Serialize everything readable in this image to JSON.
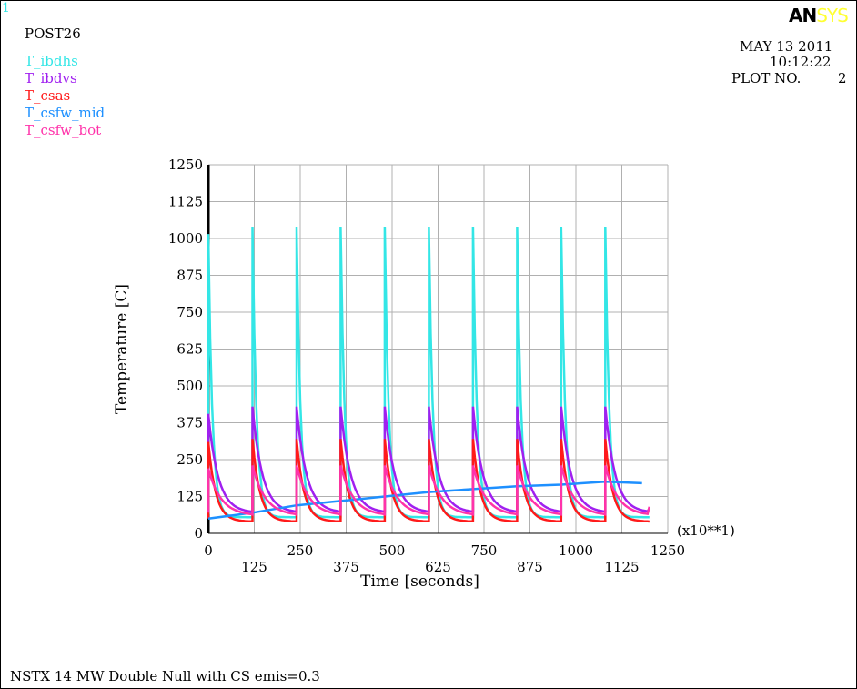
{
  "window_number": "1",
  "post_label": "POST26",
  "logo": {
    "part1": "AN",
    "part2": "SYS",
    "part1_color": "#000000",
    "part2_color": "#ffff33"
  },
  "date": "MAY 13 2011",
  "time": "10:12:22",
  "plot_no_label": "PLOT NO.",
  "plot_no": "2",
  "footer_caption": "NSTX 14 MW Double Null with CS emis=0.3",
  "chart_data": {
    "type": "line",
    "title": "",
    "xlabel": "Time  [seconds]",
    "ylabel": "Temperature  [C]",
    "x_multiplier_label": "(x10**1)",
    "xlim": [
      0,
      1250
    ],
    "ylim": [
      0,
      1250
    ],
    "x_ticks": [
      "0",
      "125",
      "250",
      "375",
      "500",
      "625",
      "750",
      "875",
      "1000",
      "1125",
      "1250"
    ],
    "y_ticks": [
      "0",
      "125",
      "250",
      "375",
      "500",
      "625",
      "750",
      "875",
      "1000",
      "1125",
      "1250"
    ],
    "grid": true,
    "cycle_starts": [
      0,
      120,
      240,
      360,
      480,
      600,
      720,
      840,
      960,
      1080
    ],
    "series": [
      {
        "name": "T_ibdhs",
        "color": "#33e6e6",
        "peak": 1040,
        "peak_first": 1015,
        "min": 55,
        "end": 55
      },
      {
        "name": "T_ibdvs",
        "color": "#a020f0",
        "peak": 430,
        "peak_first": 405,
        "min": 70,
        "end": 85
      },
      {
        "name": "T_csas",
        "color": "#ff1a1a",
        "peak": 320,
        "peak_first": 310,
        "min": 40,
        "end": 40
      },
      {
        "name": "T_csfw_mid",
        "color": "#1e90ff",
        "x": [
          0,
          120,
          240,
          360,
          480,
          600,
          720,
          840,
          960,
          1080,
          1180
        ],
        "y": [
          50,
          70,
          95,
          110,
          125,
          140,
          150,
          160,
          165,
          175,
          170
        ]
      },
      {
        "name": "T_csfw_bot",
        "color": "#ff33aa",
        "peak": 230,
        "peak_first": 220,
        "min": 60,
        "end": 90
      }
    ]
  }
}
